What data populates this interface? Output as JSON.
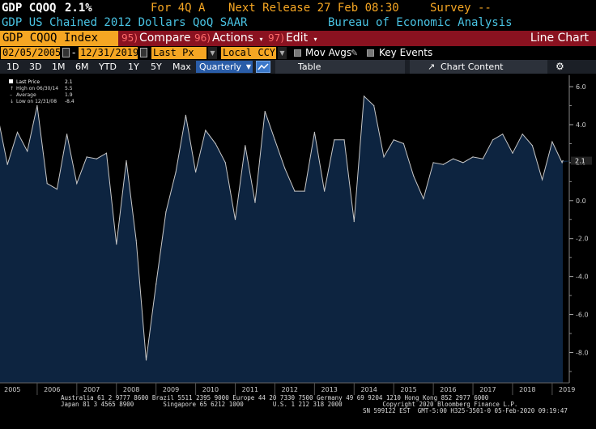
{
  "header": {
    "ticker": "GDP CQOQ",
    "value": "2.1%",
    "period_label": "For 4Q A",
    "next_release": "Next Release 27 Feb 08:30",
    "survey": "Survey --",
    "description": "GDP US Chained 2012 Dollars QoQ SAAR",
    "source": "Bureau of Economic Analysis"
  },
  "menubar": {
    "security": "GDP CQOQ Index",
    "compare_num": "95)",
    "compare": "Compare",
    "actions_num": "96)",
    "actions": "Actions",
    "edit_num": "97)",
    "edit": "Edit",
    "title": "Line Chart"
  },
  "controls": {
    "start_date": "02/05/2005",
    "end_date": "12/31/2019",
    "price_field": "Last Px",
    "currency": "Local CCY",
    "mov_avgs": "Mov Avgs",
    "key_events": "Key Events"
  },
  "rangebar": {
    "ranges": [
      "1D",
      "3D",
      "1M",
      "6M",
      "YTD",
      "1Y",
      "5Y",
      "Max"
    ],
    "periodicity": "Quarterly",
    "table": "Table",
    "chart_content": "Chart Content"
  },
  "colors": {
    "background": "#000000",
    "plot_fill": "#0d2440",
    "line": "#c8c8c8",
    "amber": "#f5a623",
    "menu_red": "#8a1220"
  },
  "chart_data": {
    "type": "area",
    "ylim": [
      -9.6,
      6.6
    ],
    "yticks": [
      "6.0",
      "4.0",
      "2.0",
      "0.0",
      "-2.0",
      "-4.0",
      "-6.0",
      "-8.0"
    ],
    "xticks": [
      "2005",
      "2006",
      "2007",
      "2008",
      "2009",
      "2010",
      "2011",
      "2012",
      "2013",
      "2014",
      "2015",
      "2016",
      "2017",
      "2018",
      "2019"
    ],
    "last_value_label": "2.1",
    "grid": false,
    "legend_position": "top-left",
    "legend": [
      {
        "label": "Last Price",
        "value": "2.1"
      },
      {
        "label": "High on 06/30/14",
        "value": "5.5"
      },
      {
        "label": "Average",
        "value": "1.9"
      },
      {
        "label": "Low on 12/31/08",
        "value": "-8.4"
      }
    ],
    "x": [
      "2005Q1",
      "2005Q2",
      "2005Q3",
      "2005Q4",
      "2006Q1",
      "2006Q2",
      "2006Q3",
      "2006Q4",
      "2007Q1",
      "2007Q2",
      "2007Q3",
      "2007Q4",
      "2008Q1",
      "2008Q2",
      "2008Q3",
      "2008Q4",
      "2009Q1",
      "2009Q2",
      "2009Q3",
      "2009Q4",
      "2010Q1",
      "2010Q2",
      "2010Q3",
      "2010Q4",
      "2011Q1",
      "2011Q2",
      "2011Q3",
      "2011Q4",
      "2012Q1",
      "2012Q2",
      "2012Q3",
      "2012Q4",
      "2013Q1",
      "2013Q2",
      "2013Q3",
      "2013Q4",
      "2014Q1",
      "2014Q2",
      "2014Q3",
      "2014Q4",
      "2015Q1",
      "2015Q2",
      "2015Q3",
      "2015Q4",
      "2016Q1",
      "2016Q2",
      "2016Q3",
      "2016Q4",
      "2017Q1",
      "2017Q2",
      "2017Q3",
      "2017Q4",
      "2018Q1",
      "2018Q2",
      "2018Q3",
      "2018Q4",
      "2019Q1",
      "2019Q2",
      "2019Q3",
      "2019Q4"
    ],
    "values": [
      4.5,
      1.9,
      3.6,
      2.6,
      5.0,
      0.9,
      0.6,
      3.5,
      0.9,
      2.3,
      2.2,
      2.5,
      -2.3,
      2.1,
      -2.1,
      -8.4,
      -4.4,
      -0.6,
      1.5,
      4.5,
      1.5,
      3.7,
      3.0,
      2.0,
      -1.0,
      2.9,
      -0.1,
      4.7,
      3.2,
      1.7,
      0.5,
      0.5,
      3.6,
      0.5,
      3.2,
      3.2,
      -1.1,
      5.5,
      5.0,
      2.3,
      3.2,
      3.0,
      1.3,
      0.1,
      2.0,
      1.9,
      2.2,
      2.0,
      2.3,
      2.2,
      3.2,
      3.5,
      2.5,
      3.5,
      2.9,
      1.1,
      3.1,
      2.0,
      2.1,
      2.1
    ]
  },
  "footer": {
    "line1": "Australia 61 2 9777 8600 Brazil 5511 2395 9000 Europe 44 20 7330 7500 Germany 49 69 9204 1210 Hong Kong 852 2977 6000",
    "line2": "Japan 81 3 4565 8900        Singapore 65 6212 1000        U.S. 1 212 318 2000           Copyright 2020 Bloomberg Finance L.P.",
    "line3": "SN 599122 EST  GMT-5:00 H325-3501-0 05-Feb-2020 09:19:47"
  }
}
